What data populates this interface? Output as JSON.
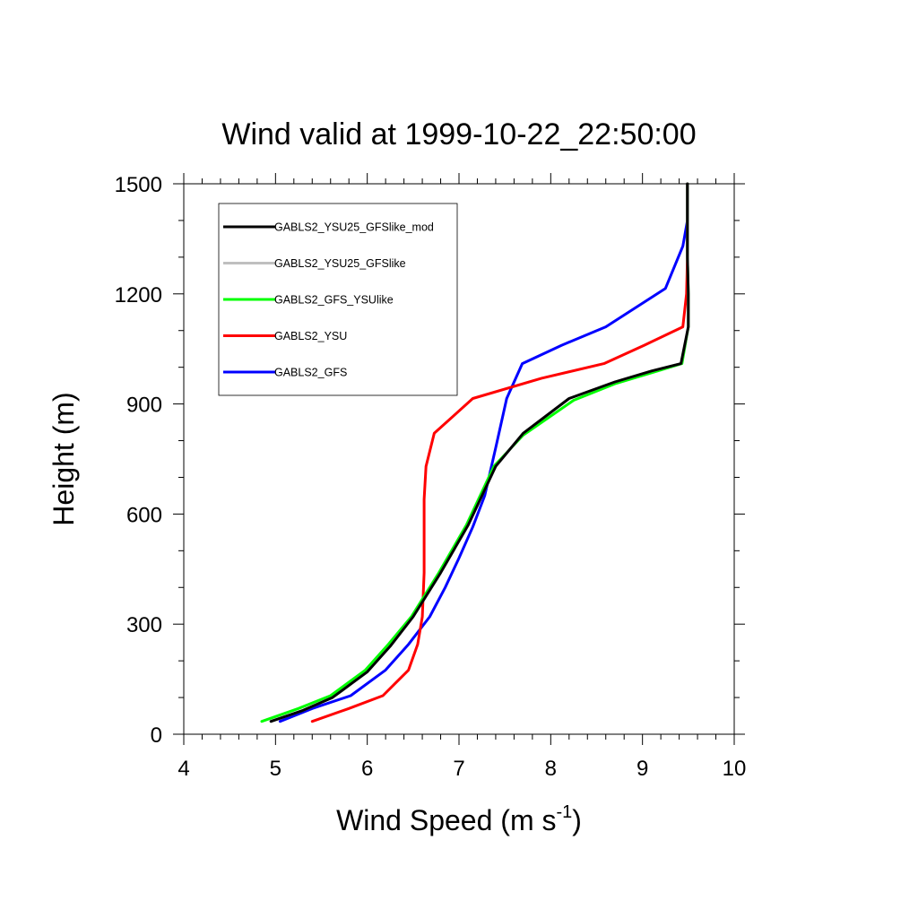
{
  "chart_data": {
    "type": "line",
    "title": "Wind valid at 1999-10-22_22:50:00",
    "xlabel": {
      "main": "Wind Speed (m s",
      "sup": "-1",
      "tail": ")"
    },
    "ylabel": "Height (m)",
    "xlim": [
      4,
      10
    ],
    "ylim": [
      0,
      1500
    ],
    "x_ticks": [
      4,
      5,
      6,
      7,
      8,
      9,
      10
    ],
    "y_ticks": [
      0,
      300,
      600,
      900,
      1200,
      1500
    ],
    "x_minor_step": 0.2,
    "y_minor_step": 100,
    "grid": false,
    "legend_position": "top-left",
    "series": [
      {
        "name": "GABLS2_YSU25_GFSlike_mod",
        "color": "#000000",
        "points": [
          [
            4.95,
            35
          ],
          [
            5.3,
            65
          ],
          [
            5.62,
            100
          ],
          [
            6,
            170
          ],
          [
            6.25,
            240
          ],
          [
            6.5,
            320
          ],
          [
            6.8,
            440
          ],
          [
            7.1,
            570
          ],
          [
            7.4,
            730
          ],
          [
            7.7,
            820
          ],
          [
            8.2,
            915
          ],
          [
            8.7,
            960
          ],
          [
            9.1,
            990
          ],
          [
            9.42,
            1010
          ],
          [
            9.5,
            1110
          ],
          [
            9.5,
            1200
          ],
          [
            9.49,
            1300
          ],
          [
            9.49,
            1400
          ],
          [
            9.49,
            1500
          ]
        ]
      },
      {
        "name": "GABLS2_YSU25_GFSlike",
        "color": "#bfbfbf",
        "points": [
          [
            4.95,
            35
          ],
          [
            5.3,
            65
          ],
          [
            5.62,
            100
          ],
          [
            6,
            170
          ],
          [
            6.25,
            240
          ],
          [
            6.5,
            320
          ],
          [
            6.8,
            440
          ],
          [
            7.1,
            570
          ],
          [
            7.4,
            730
          ],
          [
            7.7,
            820
          ],
          [
            8.2,
            915
          ],
          [
            8.7,
            960
          ],
          [
            9.1,
            990
          ],
          [
            9.42,
            1010
          ],
          [
            9.5,
            1110
          ],
          [
            9.5,
            1200
          ],
          [
            9.49,
            1300
          ],
          [
            9.49,
            1400
          ],
          [
            9.49,
            1500
          ]
        ]
      },
      {
        "name": "GABLS2_GFS_YSUlike",
        "color": "#00ff00",
        "points": [
          [
            4.85,
            35
          ],
          [
            5.25,
            70
          ],
          [
            5.6,
            105
          ],
          [
            5.98,
            175
          ],
          [
            6.23,
            245
          ],
          [
            6.48,
            320
          ],
          [
            6.78,
            440
          ],
          [
            7.08,
            570
          ],
          [
            7.38,
            730
          ],
          [
            7.7,
            815
          ],
          [
            8.25,
            910
          ],
          [
            8.7,
            955
          ],
          [
            9.1,
            985
          ],
          [
            9.43,
            1010
          ],
          [
            9.5,
            1110
          ],
          [
            9.5,
            1200
          ],
          [
            9.49,
            1300
          ],
          [
            9.49,
            1400
          ],
          [
            9.49,
            1500
          ]
        ]
      },
      {
        "name": "GABLS2_YSU",
        "color": "#ff0000",
        "points": [
          [
            5.4,
            35
          ],
          [
            5.8,
            70
          ],
          [
            6.17,
            105
          ],
          [
            6.45,
            175
          ],
          [
            6.55,
            245
          ],
          [
            6.6,
            320
          ],
          [
            6.62,
            440
          ],
          [
            6.62,
            570
          ],
          [
            6.62,
            640
          ],
          [
            6.64,
            730
          ],
          [
            6.73,
            820
          ],
          [
            7.15,
            915
          ],
          [
            7.9,
            970
          ],
          [
            8.58,
            1010
          ],
          [
            9.02,
            1060
          ],
          [
            9.44,
            1110
          ],
          [
            9.48,
            1200
          ],
          [
            9.49,
            1300
          ],
          [
            9.49,
            1400
          ],
          [
            9.49,
            1500
          ]
        ]
      },
      {
        "name": "GABLS2_GFS",
        "color": "#0000ff",
        "points": [
          [
            5.05,
            35
          ],
          [
            5.4,
            70
          ],
          [
            5.82,
            105
          ],
          [
            6.2,
            175
          ],
          [
            6.45,
            245
          ],
          [
            6.68,
            320
          ],
          [
            6.85,
            400
          ],
          [
            7,
            480
          ],
          [
            7.15,
            565
          ],
          [
            7.28,
            650
          ],
          [
            7.4,
            780
          ],
          [
            7.52,
            915
          ],
          [
            7.69,
            1010
          ],
          [
            8.12,
            1060
          ],
          [
            8.6,
            1110
          ],
          [
            9.25,
            1215
          ],
          [
            9.44,
            1330
          ],
          [
            9.49,
            1400
          ],
          [
            9.49,
            1500
          ]
        ]
      }
    ]
  }
}
